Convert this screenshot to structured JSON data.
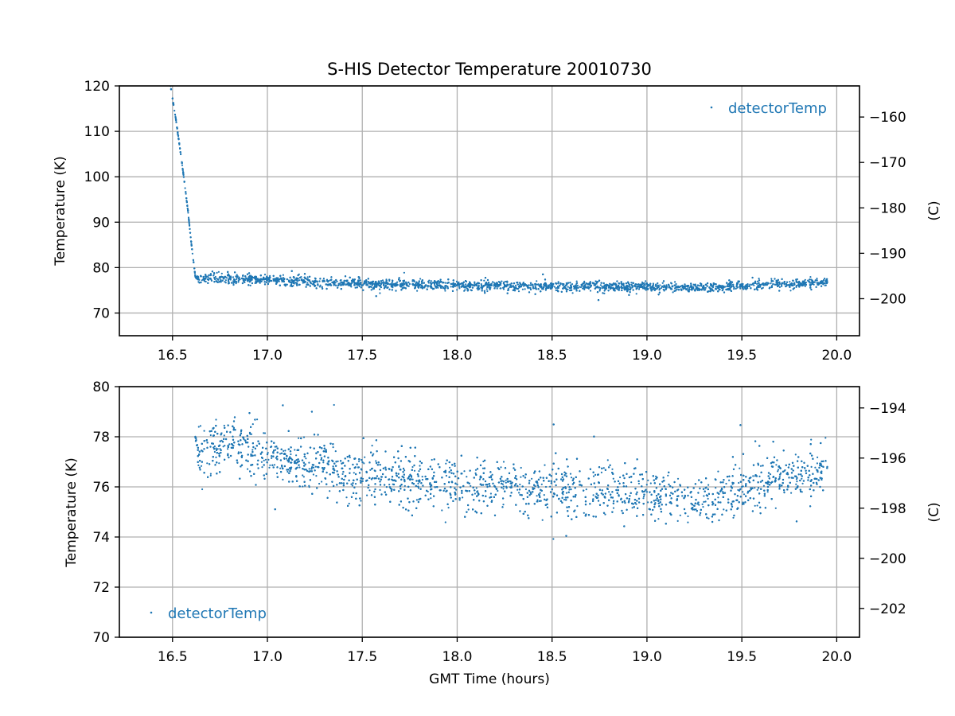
{
  "chart_data": [
    {
      "type": "scatter",
      "title": "S-HIS Detector Temperature 20010730",
      "xlabel": "",
      "ylabel": "Temperature (K)",
      "y2label": "(C)",
      "xlim": [
        16.22,
        20.12
      ],
      "ylim": [
        65,
        120
      ],
      "y2lim": [
        -208.15,
        -153.15
      ],
      "xticks": [
        "16.5",
        "17.0",
        "17.5",
        "18.0",
        "18.5",
        "19.0",
        "19.5",
        "20.0"
      ],
      "yticks": [
        "70",
        "80",
        "90",
        "100",
        "110",
        "120"
      ],
      "y2ticks": [
        "−160",
        "−170",
        "−180",
        "−190",
        "−200"
      ],
      "grid": true,
      "legend_position": "top-right",
      "series": [
        {
          "name": "detectorTemp",
          "color": "#1f77b4",
          "marker": "point",
          "x": [
            16.49,
            16.52,
            16.55,
            16.58,
            16.6,
            16.62,
            16.64,
            16.7,
            16.8,
            16.9,
            17.0,
            17.2,
            17.4,
            17.6,
            17.8,
            18.0,
            18.2,
            18.4,
            18.6,
            18.8,
            19.0,
            19.2,
            19.3,
            19.4,
            19.5,
            19.6,
            19.7,
            19.8,
            19.9,
            19.95
          ],
          "y": [
            120,
            112,
            103,
            93,
            85,
            78,
            77.3,
            77.6,
            77.7,
            77.6,
            77.3,
            76.9,
            76.6,
            76.4,
            76.2,
            76.1,
            76.0,
            75.9,
            75.9,
            75.8,
            75.8,
            75.6,
            75.4,
            75.8,
            76.0,
            76.2,
            76.4,
            76.5,
            76.6,
            76.8
          ]
        }
      ]
    },
    {
      "type": "scatter",
      "title": "",
      "xlabel": "GMT Time (hours)",
      "ylabel": "Temperature (K)",
      "y2label": "(C)",
      "xlim": [
        16.22,
        20.12
      ],
      "ylim": [
        70,
        80
      ],
      "y2lim": [
        -203.15,
        -193.15
      ],
      "xticks": [
        "16.5",
        "17.0",
        "17.5",
        "18.0",
        "18.5",
        "19.0",
        "19.5",
        "20.0"
      ],
      "yticks": [
        "70",
        "72",
        "74",
        "76",
        "78",
        "80"
      ],
      "y2ticks": [
        "−194",
        "−196",
        "−198",
        "−200",
        "−202"
      ],
      "grid": true,
      "legend_position": "bottom-left",
      "series": [
        {
          "name": "detectorTemp",
          "color": "#1f77b4",
          "marker": "point",
          "x": [
            16.62,
            16.64,
            16.7,
            16.8,
            16.9,
            17.0,
            17.2,
            17.4,
            17.6,
            17.8,
            18.0,
            18.2,
            18.4,
            18.6,
            18.8,
            19.0,
            19.1,
            19.2,
            19.3,
            19.4,
            19.5,
            19.6,
            19.7,
            19.8,
            19.9,
            19.95
          ],
          "y": [
            78.0,
            77.3,
            77.6,
            77.7,
            77.6,
            77.3,
            76.9,
            76.6,
            76.4,
            76.2,
            76.1,
            76.0,
            75.9,
            75.9,
            75.8,
            75.8,
            75.7,
            75.6,
            75.4,
            75.8,
            76.0,
            76.2,
            76.4,
            76.5,
            76.6,
            76.8
          ]
        }
      ]
    }
  ]
}
